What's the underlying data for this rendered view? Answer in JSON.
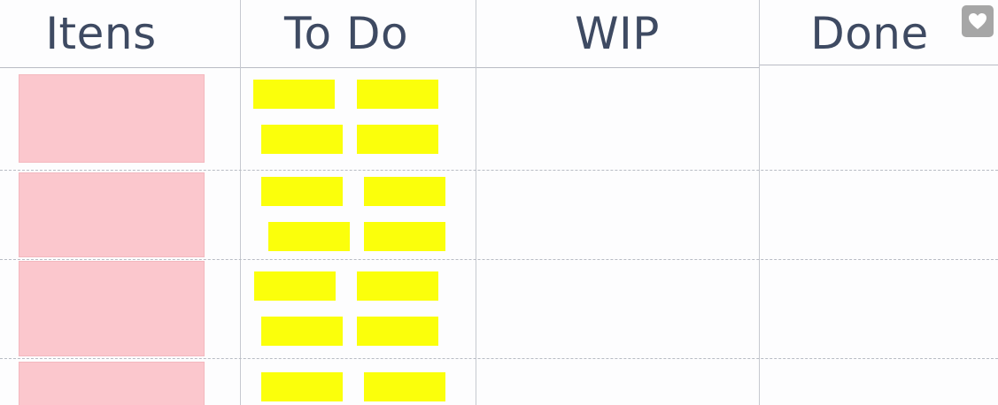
{
  "columns": [
    {
      "title": "Itens"
    },
    {
      "title": "To Do"
    },
    {
      "title": "WIP"
    },
    {
      "title": "Done"
    }
  ],
  "rows": [
    {
      "item_color": "#fbc7cd",
      "todo_notes": 4
    },
    {
      "item_color": "#fbc7cd",
      "todo_notes": 4
    },
    {
      "item_color": "#fbc7cd",
      "todo_notes": 4
    },
    {
      "item_color": "#fbc7cd",
      "todo_notes": 2
    }
  ],
  "colors": {
    "header_text": "#3e4a62",
    "sticky_note": "#fbff0b",
    "item_card": "#fbc7cd",
    "icon_button": "#a6a6a6"
  },
  "icons": {
    "favorite": "heart-icon"
  }
}
